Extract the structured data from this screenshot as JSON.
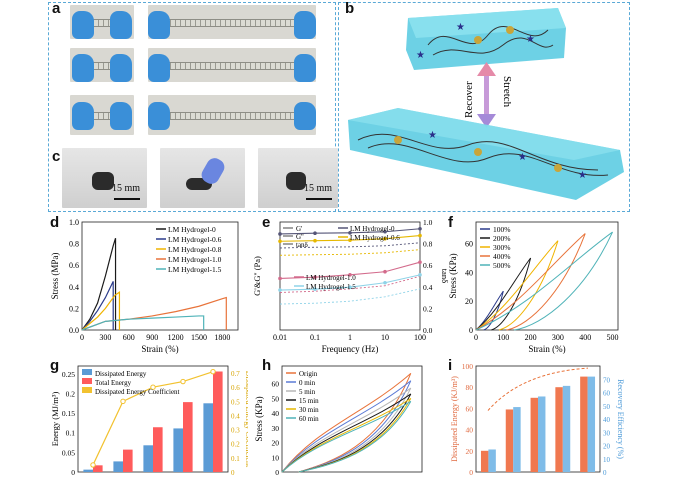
{
  "panels": {
    "a": {
      "label": "a"
    },
    "b": {
      "label": "b",
      "recover": "Recover",
      "stretch": "Stretch"
    },
    "c": {
      "label": "c",
      "scale": "15 mm"
    },
    "d": {
      "label": "d"
    },
    "e": {
      "label": "e"
    },
    "f": {
      "label": "f"
    },
    "g": {
      "label": "g"
    },
    "h": {
      "label": "h"
    },
    "i": {
      "label": "i"
    }
  },
  "colors": {
    "accent_blue": "#5aa9d6",
    "hydrogel": "#53c9e0",
    "arrow_pink": "#e58aa8",
    "arrow_purple": "#a58ad8"
  },
  "chart_data": [
    {
      "id": "d",
      "type": "line",
      "xlabel": "Strain (%)",
      "ylabel": "Stress (MPa)",
      "xlim": [
        0,
        2000
      ],
      "ylim": [
        0,
        1.0
      ],
      "xticks": [
        0,
        300,
        600,
        900,
        1200,
        1500,
        1800
      ],
      "yticks": [
        0,
        0.2,
        0.4,
        0.6,
        0.8,
        1.0
      ],
      "legend_position": "top-right",
      "series": [
        {
          "name": "LM Hydrogel-0",
          "color": "#1a1a1a",
          "x": [
            0,
            100,
            200,
            300,
            400,
            430,
            430
          ],
          "y": [
            0,
            0.1,
            0.25,
            0.5,
            0.78,
            0.85,
            0
          ]
        },
        {
          "name": "LM Hydrogel-0.6",
          "color": "#2a3a8a",
          "x": [
            0,
            100,
            200,
            300,
            380,
            400,
            400
          ],
          "y": [
            0,
            0.08,
            0.18,
            0.3,
            0.42,
            0.45,
            0
          ]
        },
        {
          "name": "LM Hydrogel-0.8",
          "color": "#f0b400",
          "x": [
            0,
            100,
            200,
            300,
            420,
            480,
            480
          ],
          "y": [
            0,
            0.06,
            0.12,
            0.2,
            0.32,
            0.35,
            0
          ]
        },
        {
          "name": "LM Hydrogel-1.0",
          "color": "#e8733a",
          "x": [
            0,
            300,
            600,
            900,
            1200,
            1500,
            1800,
            1850,
            1850
          ],
          "y": [
            0,
            0.08,
            0.1,
            0.13,
            0.17,
            0.22,
            0.29,
            0.3,
            0
          ]
        },
        {
          "name": "LM Hydrogel-1.5",
          "color": "#4fb3b8",
          "x": [
            0,
            300,
            600,
            900,
            1200,
            1500,
            1560,
            1560
          ],
          "y": [
            0,
            0.08,
            0.1,
            0.11,
            0.12,
            0.13,
            0.13,
            0
          ]
        }
      ]
    },
    {
      "id": "e",
      "type": "line",
      "xlabel": "Frequency (Hz)",
      "ylabel": "G'&G'' (Pa)",
      "y2label": "tanδ",
      "xscale": "log",
      "xlim": [
        0.01,
        100
      ],
      "yscale": "log",
      "ylim": [
        1000,
        100000
      ],
      "y2lim": [
        0.0,
        1.0
      ],
      "xticks": [
        "0.01",
        "0.1",
        "1",
        "10",
        "100"
      ],
      "y2ticks": [
        "0.0",
        "0.2",
        "0.4",
        "0.6",
        "0.8",
        "1.0"
      ],
      "legend_position": "top",
      "legend_markers": [
        "G'",
        "G''",
        "tanδ"
      ],
      "series": [
        {
          "name": "LM Hydrogel-0",
          "color": "#555577",
          "x": [
            0.01,
            0.1,
            1,
            10,
            100
          ],
          "y": [
            60000,
            62000,
            63000,
            66000,
            75000
          ]
        },
        {
          "name": "LM Hydrogel-0.6",
          "color": "#e6b800",
          "x": [
            0.01,
            0.1,
            1,
            10,
            100
          ],
          "y": [
            44000,
            45000,
            46000,
            49000,
            56000
          ]
        },
        {
          "name": "LM Hydrogel-1.0",
          "color": "#d36b8c",
          "x": [
            0.01,
            0.1,
            1,
            10,
            100
          ],
          "y": [
            9000,
            9500,
            10500,
            12000,
            18000
          ]
        },
        {
          "name": "LM Hydrogel-1.5",
          "color": "#8fd3e8",
          "x": [
            0.01,
            0.1,
            1,
            10,
            100
          ],
          "y": [
            5500,
            5700,
            6200,
            7500,
            10500
          ]
        }
      ]
    },
    {
      "id": "f",
      "type": "line",
      "xlabel": "Strain (%)",
      "ylabel": "Stress (KPa)",
      "xlim": [
        0,
        520
      ],
      "ylim": [
        0,
        75
      ],
      "xticks": [
        0,
        100,
        200,
        300,
        400,
        500
      ],
      "yticks": [
        0,
        20,
        40,
        60
      ],
      "legend_position": "top-left",
      "series": [
        {
          "name": "100%",
          "color": "#2a3a8a",
          "max_strain": 100,
          "max_stress": 27
        },
        {
          "name": "200%",
          "color": "#1a1a1a",
          "max_strain": 200,
          "max_stress": 50
        },
        {
          "name": "300%",
          "color": "#f0b400",
          "max_strain": 300,
          "max_stress": 62
        },
        {
          "name": "400%",
          "color": "#e8733a",
          "max_strain": 400,
          "max_stress": 67
        },
        {
          "name": "500%",
          "color": "#4fb3b8",
          "max_strain": 500,
          "max_stress": 68
        }
      ]
    },
    {
      "id": "g",
      "type": "bar",
      "xlabel": "",
      "ylabel": "Energy (MJ/m³)",
      "y2label": "Dissipated Energy Coefficient",
      "ylim": [
        0,
        0.27
      ],
      "y2lim": [
        0,
        0.75
      ],
      "yticks": [
        0,
        0.05,
        0.1,
        0.15,
        0.2,
        0.25
      ],
      "y2ticks": [
        0,
        0.1,
        0.2,
        0.3,
        0.4,
        0.5,
        0.6,
        0.7
      ],
      "legend_position": "top-left",
      "series": [
        {
          "name": "Dissipated Energy",
          "color": "#5b9bd5",
          "values": [
            0.006,
            0.027,
            0.068,
            0.111,
            0.175
          ]
        },
        {
          "name": "Total Energy",
          "color": "#ff5b5b",
          "values": [
            0.017,
            0.057,
            0.114,
            0.178,
            0.256
          ]
        },
        {
          "name": "Dissipated Energy Coefficient",
          "color": "#f2c230",
          "values": [
            0.05,
            0.5,
            0.6,
            0.64,
            0.71
          ]
        }
      ]
    },
    {
      "id": "h",
      "type": "line",
      "xlabel": "",
      "ylabel": "Stress (KPa)",
      "ylim": [
        0,
        72
      ],
      "yticks": [
        0,
        10,
        20,
        30,
        40,
        50,
        60
      ],
      "legend_position": "top-left",
      "series": [
        {
          "name": "Origin",
          "color": "#e8733a",
          "max_stress": 67
        },
        {
          "name": "0 min",
          "color": "#5b7ad5",
          "max_stress": 62
        },
        {
          "name": "5 min",
          "color": "#b7b7b7",
          "max_stress": 57
        },
        {
          "name": "15 min",
          "color": "#1a1a1a",
          "max_stress": 53
        },
        {
          "name": "30 min",
          "color": "#e6b800",
          "max_stress": 50
        },
        {
          "name": "60 min",
          "color": "#4fb3b8",
          "max_stress": 48
        }
      ]
    },
    {
      "id": "i",
      "type": "bar",
      "xlabel": "",
      "ylabel": "Dissipated Energy (KJ/m³)",
      "y2label": "Recovery Efficiency (%)",
      "ylim": [
        0,
        100
      ],
      "y2lim": [
        0,
        80
      ],
      "yticks": [
        0,
        20,
        40,
        60,
        80,
        100
      ],
      "y2ticks": [
        0,
        10,
        20,
        30,
        40,
        50,
        60,
        70
      ],
      "series": [
        {
          "name": "Dissipated Energy",
          "color": "#f07850",
          "values": [
            20,
            59,
            70,
            80,
            90
          ]
        },
        {
          "name": "Recovery Efficiency",
          "color": "#7fbce8",
          "values": [
            17,
            49,
            57,
            65,
            72
          ]
        }
      ]
    }
  ]
}
